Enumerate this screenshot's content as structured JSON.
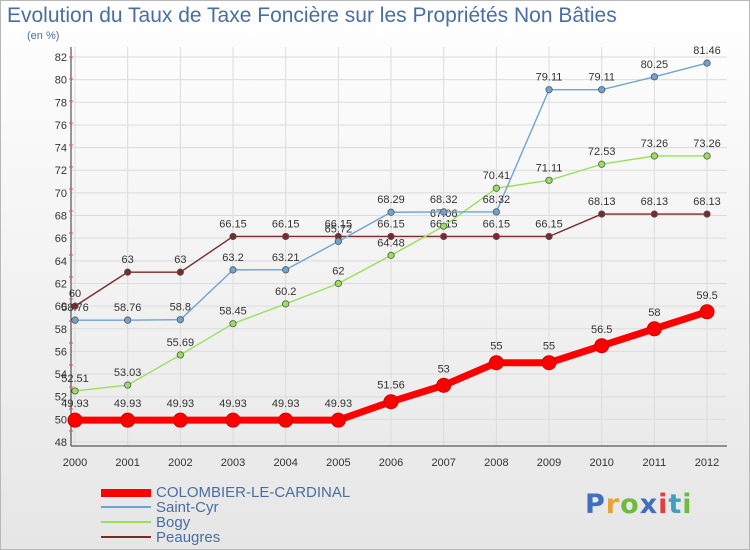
{
  "chart_data": {
    "type": "line",
    "title": "Evolution du Taux de Taxe Foncière sur les Propriétés Non Bâties",
    "subtitle": "(en %)",
    "x": [
      "2000",
      "2001",
      "2002",
      "2003",
      "2004",
      "2005",
      "2006",
      "2007",
      "2008",
      "2009",
      "2010",
      "2011",
      "2012"
    ],
    "ylim": [
      48,
      82
    ],
    "yticks": [
      48,
      50,
      52,
      54,
      56,
      58,
      60,
      62,
      64,
      66,
      68,
      70,
      72,
      74,
      76,
      78,
      80,
      82
    ],
    "grid": true,
    "legend_position": "bottom-left",
    "series": [
      {
        "name": "COLOMBIER-LE-CARDINAL",
        "color": "#ff0000",
        "values": [
          49.93,
          49.93,
          49.93,
          49.93,
          49.93,
          49.93,
          51.56,
          53,
          55,
          55,
          56.5,
          58,
          59.5
        ],
        "labels": [
          "49.93",
          "49.93",
          "49.93",
          "49.93",
          "49.93",
          "49.93",
          "51.56",
          "53",
          "55",
          "55",
          "56.5",
          "58",
          "59.5"
        ]
      },
      {
        "name": "Saint-Cyr",
        "color": "#6fa3d3",
        "values": [
          58.76,
          58.76,
          58.8,
          63.2,
          63.21,
          65.72,
          68.29,
          68.32,
          68.32,
          79.11,
          79.11,
          80.25,
          81.46
        ],
        "labels": [
          "58.76",
          "58.76",
          "58.8",
          "63.2",
          "63.21",
          "65.72",
          "68.29",
          "68.32",
          "68.32",
          "79.11",
          "79.11",
          "80.25",
          "81.46"
        ]
      },
      {
        "name": "Bogy",
        "color": "#99e05a",
        "values": [
          52.51,
          53.03,
          55.69,
          58.45,
          60.2,
          62,
          64.48,
          67.06,
          70.41,
          71.11,
          72.53,
          73.26,
          73.26
        ],
        "labels": [
          "52.51",
          "53.03",
          "55.69",
          "58.45",
          "60.2",
          "62",
          "64.48",
          "67.06",
          "70.41",
          "71.11",
          "72.53",
          "73.26",
          "73.26"
        ]
      },
      {
        "name": "Peaugres",
        "color": "#7b2a2a",
        "values": [
          60,
          63,
          63,
          66.15,
          66.15,
          66.15,
          66.15,
          66.15,
          66.15,
          66.15,
          68.13,
          68.13,
          68.13
        ],
        "labels": [
          "60",
          "63",
          "63",
          "66.15",
          "66.15",
          "66.15",
          "66.15",
          "66.15",
          "66.15",
          "66.15",
          "68.13",
          "68.13",
          "68.13"
        ]
      }
    ]
  },
  "legend": [
    {
      "label": "COLOMBIER-LE-CARDINAL",
      "color": "#ff0000"
    },
    {
      "label": "Saint-Cyr",
      "color": "#6fa3d3"
    },
    {
      "label": "Bogy",
      "color": "#99e05a"
    },
    {
      "label": "Peaugres",
      "color": "#7b2a2a"
    }
  ],
  "brand": {
    "letters": [
      "P",
      "r",
      "o",
      "x",
      "i",
      "t",
      "i"
    ],
    "colors": [
      "#3f6fbf",
      "#e8a23a",
      "#6dbb3f",
      "#3f6fbf",
      "#e04040",
      "#3f9fbf",
      "#6dbb3f"
    ]
  }
}
